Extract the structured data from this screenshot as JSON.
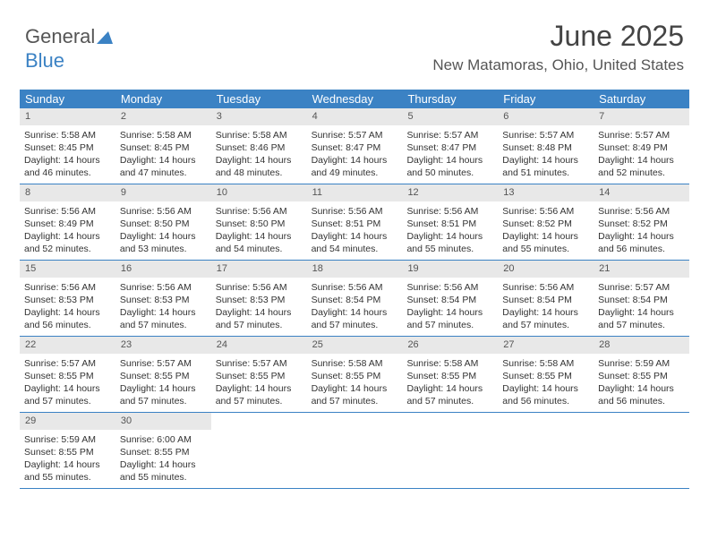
{
  "logo": {
    "part1": "General",
    "part2": "Blue"
  },
  "title": "June 2025",
  "location": "New Matamoras, Ohio, United States",
  "colors": {
    "accent": "#3b82c4",
    "daynum_bg": "#e8e8e8",
    "text": "#333333",
    "muted": "#555555",
    "bg": "#ffffff"
  },
  "day_headers": [
    "Sunday",
    "Monday",
    "Tuesday",
    "Wednesday",
    "Thursday",
    "Friday",
    "Saturday"
  ],
  "weeks": [
    [
      {
        "n": "1",
        "sr": "Sunrise: 5:58 AM",
        "ss": "Sunset: 8:45 PM",
        "d1": "Daylight: 14 hours",
        "d2": "and 46 minutes."
      },
      {
        "n": "2",
        "sr": "Sunrise: 5:58 AM",
        "ss": "Sunset: 8:45 PM",
        "d1": "Daylight: 14 hours",
        "d2": "and 47 minutes."
      },
      {
        "n": "3",
        "sr": "Sunrise: 5:58 AM",
        "ss": "Sunset: 8:46 PM",
        "d1": "Daylight: 14 hours",
        "d2": "and 48 minutes."
      },
      {
        "n": "4",
        "sr": "Sunrise: 5:57 AM",
        "ss": "Sunset: 8:47 PM",
        "d1": "Daylight: 14 hours",
        "d2": "and 49 minutes."
      },
      {
        "n": "5",
        "sr": "Sunrise: 5:57 AM",
        "ss": "Sunset: 8:47 PM",
        "d1": "Daylight: 14 hours",
        "d2": "and 50 minutes."
      },
      {
        "n": "6",
        "sr": "Sunrise: 5:57 AM",
        "ss": "Sunset: 8:48 PM",
        "d1": "Daylight: 14 hours",
        "d2": "and 51 minutes."
      },
      {
        "n": "7",
        "sr": "Sunrise: 5:57 AM",
        "ss": "Sunset: 8:49 PM",
        "d1": "Daylight: 14 hours",
        "d2": "and 52 minutes."
      }
    ],
    [
      {
        "n": "8",
        "sr": "Sunrise: 5:56 AM",
        "ss": "Sunset: 8:49 PM",
        "d1": "Daylight: 14 hours",
        "d2": "and 52 minutes."
      },
      {
        "n": "9",
        "sr": "Sunrise: 5:56 AM",
        "ss": "Sunset: 8:50 PM",
        "d1": "Daylight: 14 hours",
        "d2": "and 53 minutes."
      },
      {
        "n": "10",
        "sr": "Sunrise: 5:56 AM",
        "ss": "Sunset: 8:50 PM",
        "d1": "Daylight: 14 hours",
        "d2": "and 54 minutes."
      },
      {
        "n": "11",
        "sr": "Sunrise: 5:56 AM",
        "ss": "Sunset: 8:51 PM",
        "d1": "Daylight: 14 hours",
        "d2": "and 54 minutes."
      },
      {
        "n": "12",
        "sr": "Sunrise: 5:56 AM",
        "ss": "Sunset: 8:51 PM",
        "d1": "Daylight: 14 hours",
        "d2": "and 55 minutes."
      },
      {
        "n": "13",
        "sr": "Sunrise: 5:56 AM",
        "ss": "Sunset: 8:52 PM",
        "d1": "Daylight: 14 hours",
        "d2": "and 55 minutes."
      },
      {
        "n": "14",
        "sr": "Sunrise: 5:56 AM",
        "ss": "Sunset: 8:52 PM",
        "d1": "Daylight: 14 hours",
        "d2": "and 56 minutes."
      }
    ],
    [
      {
        "n": "15",
        "sr": "Sunrise: 5:56 AM",
        "ss": "Sunset: 8:53 PM",
        "d1": "Daylight: 14 hours",
        "d2": "and 56 minutes."
      },
      {
        "n": "16",
        "sr": "Sunrise: 5:56 AM",
        "ss": "Sunset: 8:53 PM",
        "d1": "Daylight: 14 hours",
        "d2": "and 57 minutes."
      },
      {
        "n": "17",
        "sr": "Sunrise: 5:56 AM",
        "ss": "Sunset: 8:53 PM",
        "d1": "Daylight: 14 hours",
        "d2": "and 57 minutes."
      },
      {
        "n": "18",
        "sr": "Sunrise: 5:56 AM",
        "ss": "Sunset: 8:54 PM",
        "d1": "Daylight: 14 hours",
        "d2": "and 57 minutes."
      },
      {
        "n": "19",
        "sr": "Sunrise: 5:56 AM",
        "ss": "Sunset: 8:54 PM",
        "d1": "Daylight: 14 hours",
        "d2": "and 57 minutes."
      },
      {
        "n": "20",
        "sr": "Sunrise: 5:56 AM",
        "ss": "Sunset: 8:54 PM",
        "d1": "Daylight: 14 hours",
        "d2": "and 57 minutes."
      },
      {
        "n": "21",
        "sr": "Sunrise: 5:57 AM",
        "ss": "Sunset: 8:54 PM",
        "d1": "Daylight: 14 hours",
        "d2": "and 57 minutes."
      }
    ],
    [
      {
        "n": "22",
        "sr": "Sunrise: 5:57 AM",
        "ss": "Sunset: 8:55 PM",
        "d1": "Daylight: 14 hours",
        "d2": "and 57 minutes."
      },
      {
        "n": "23",
        "sr": "Sunrise: 5:57 AM",
        "ss": "Sunset: 8:55 PM",
        "d1": "Daylight: 14 hours",
        "d2": "and 57 minutes."
      },
      {
        "n": "24",
        "sr": "Sunrise: 5:57 AM",
        "ss": "Sunset: 8:55 PM",
        "d1": "Daylight: 14 hours",
        "d2": "and 57 minutes."
      },
      {
        "n": "25",
        "sr": "Sunrise: 5:58 AM",
        "ss": "Sunset: 8:55 PM",
        "d1": "Daylight: 14 hours",
        "d2": "and 57 minutes."
      },
      {
        "n": "26",
        "sr": "Sunrise: 5:58 AM",
        "ss": "Sunset: 8:55 PM",
        "d1": "Daylight: 14 hours",
        "d2": "and 57 minutes."
      },
      {
        "n": "27",
        "sr": "Sunrise: 5:58 AM",
        "ss": "Sunset: 8:55 PM",
        "d1": "Daylight: 14 hours",
        "d2": "and 56 minutes."
      },
      {
        "n": "28",
        "sr": "Sunrise: 5:59 AM",
        "ss": "Sunset: 8:55 PM",
        "d1": "Daylight: 14 hours",
        "d2": "and 56 minutes."
      }
    ],
    [
      {
        "n": "29",
        "sr": "Sunrise: 5:59 AM",
        "ss": "Sunset: 8:55 PM",
        "d1": "Daylight: 14 hours",
        "d2": "and 55 minutes."
      },
      {
        "n": "30",
        "sr": "Sunrise: 6:00 AM",
        "ss": "Sunset: 8:55 PM",
        "d1": "Daylight: 14 hours",
        "d2": "and 55 minutes."
      },
      null,
      null,
      null,
      null,
      null
    ]
  ]
}
